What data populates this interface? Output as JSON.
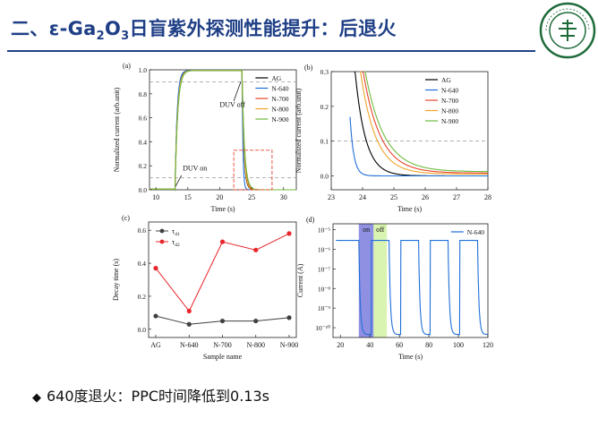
{
  "slide": {
    "title_prefix": "二、ε-Ga",
    "title_sub1": "2",
    "title_mid": "O",
    "title_sub2": "3",
    "title_suffix": "日盲紫外探测性能提升：后退火",
    "bullet_mark": "◆",
    "bullet_text": "640度退火：PPC时间降低到0.13s",
    "logo_text": "SUN YAT-SEN UNIVERSITY",
    "logo_chars": "中山大学"
  },
  "colors": {
    "title": "#1f3f86",
    "AG": "#000000",
    "N-640": "#1f6fd8",
    "N-700": "#e8442c",
    "N-800": "#f0a52a",
    "N-900": "#6fbb3f",
    "td1": "#404040",
    "td2": "#e8262c",
    "on_band": "#7d7ddd",
    "off_band": "#d9f3b0"
  },
  "chart_data": [
    {
      "panel": "(a)",
      "type": "line",
      "xlabel": "Time (s)",
      "ylabel": "Normalized current (arb.unit)",
      "xlim": [
        9,
        32
      ],
      "ylim": [
        0,
        1.0
      ],
      "xticks": [
        "10",
        "15",
        "20",
        "25",
        "30"
      ],
      "yticks": [
        "0.0",
        "0.2",
        "0.4",
        "0.6",
        "0.8",
        "1.0"
      ],
      "legend": [
        "AG",
        "N-640",
        "N-700",
        "N-800",
        "N-900"
      ],
      "annotations": [
        "DUV off",
        "DUV on"
      ],
      "reference_levels": [
        0.9,
        0.1
      ],
      "uv_on_time": 13,
      "uv_off_time": 23.5,
      "zoom_box": {
        "x": [
          22.2,
          28.2
        ],
        "y": [
          0,
          0.33
        ]
      }
    },
    {
      "panel": "(b)",
      "type": "line",
      "xlabel": "Time (s)",
      "ylabel": "Normalized current (arb.unit)",
      "xlim": [
        23,
        28
      ],
      "ylim": [
        -0.04,
        0.3
      ],
      "xticks": [
        "23",
        "24",
        "25",
        "26",
        "27",
        "28"
      ],
      "yticks": [
        "0.0",
        "0.1",
        "0.2",
        "0.3"
      ],
      "legend": [
        "AG",
        "N-640",
        "N-700",
        "N-800",
        "N-900"
      ],
      "reference_level": 0.1,
      "decay_tau": {
        "AG": 0.33,
        "N-640": 0.12,
        "N-700": 0.55,
        "N-800": 0.48,
        "N-900": 0.6
      }
    },
    {
      "panel": "(c)",
      "type": "line",
      "xlabel": "Sample name",
      "ylabel": "Decay time (s)",
      "categories": [
        "AG",
        "N-640",
        "N-700",
        "N-800",
        "N-900"
      ],
      "ylim": [
        -0.05,
        0.65
      ],
      "yticks": [
        "0.0",
        "0.2",
        "0.4",
        "0.6"
      ],
      "series": [
        {
          "name": "τd1",
          "values": [
            0.08,
            0.03,
            0.05,
            0.05,
            0.07
          ]
        },
        {
          "name": "τd2",
          "values": [
            0.37,
            0.11,
            0.53,
            0.48,
            0.58
          ]
        }
      ]
    },
    {
      "panel": "(d)",
      "type": "line",
      "xlabel": "Time (s)",
      "ylabel": "Current (A)",
      "xlim": [
        15,
        120
      ],
      "y_scale": "log",
      "ylim_exp": [
        -10.5,
        -4.7
      ],
      "xticks": [
        "20",
        "40",
        "60",
        "80",
        "100",
        "120"
      ],
      "yticks": [
        "10⁻¹⁰",
        "10⁻⁹",
        "10⁻⁸",
        "10⁻⁷",
        "10⁻⁶",
        "10⁻⁵"
      ],
      "legend": [
        "N-640"
      ],
      "band_labels": [
        "on",
        "off"
      ],
      "on_band": [
        32.5,
        42.5
      ],
      "off_band": [
        42.5,
        51.5
      ],
      "high_level_exp": -5.55,
      "dark_level_exp": -10.35,
      "cycles": [
        [
          17,
          32.5
        ],
        [
          41,
          53
        ],
        [
          61,
          73
        ],
        [
          81,
          93
        ],
        [
          101,
          113
        ]
      ]
    }
  ]
}
